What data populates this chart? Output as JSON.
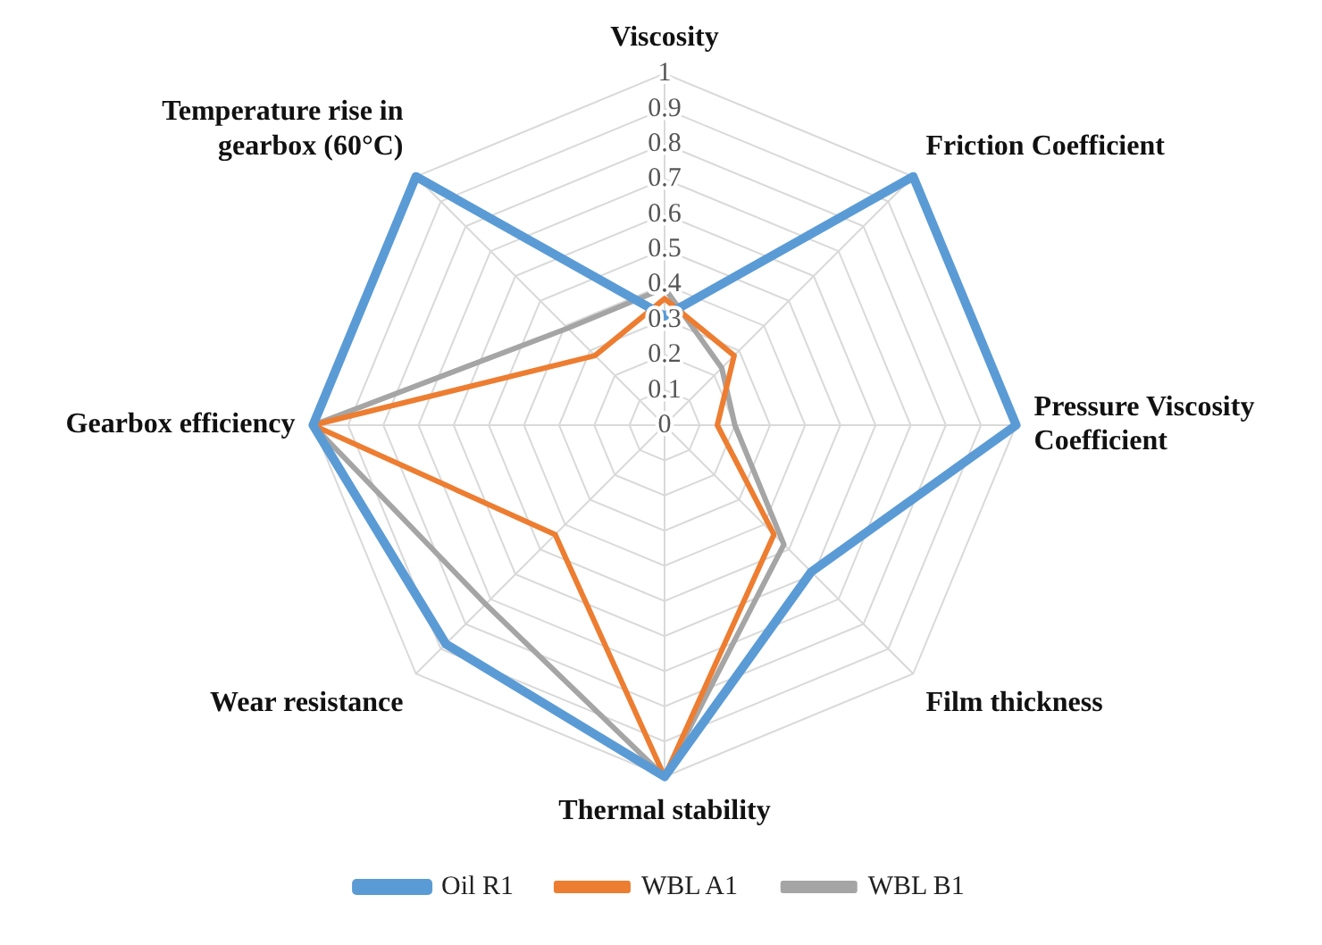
{
  "chart_data": {
    "type": "radar",
    "categories": [
      "Viscosity",
      "Friction Coefficient",
      "Pressure Viscosity Coefficient",
      "Film thickness",
      "Thermal stability",
      "Wear resistance",
      "Gearbox efficiency",
      "Temperature rise in gearbox (60°C)"
    ],
    "series": [
      {
        "name": "Oil R1",
        "color": "#5b9bd5",
        "values": [
          0.31,
          1,
          1,
          0.59,
          1,
          0.88,
          1,
          1
        ]
      },
      {
        "name": "WBL A1",
        "color": "#ed7d31",
        "values": [
          0.36,
          0.28,
          0.15,
          0.44,
          1,
          0.44,
          1,
          0.28
        ]
      },
      {
        "name": "WBL B1",
        "color": "#a5a5a5",
        "values": [
          0.39,
          0.23,
          0.2,
          0.48,
          1,
          0.72,
          1,
          0.39
        ]
      }
    ],
    "ylim": [
      0,
      1
    ],
    "yticks": [
      0,
      0.1,
      0.2,
      0.3,
      0.4,
      0.5,
      0.6,
      0.7,
      0.8,
      0.9,
      1
    ],
    "grid": true,
    "legend": "bottom",
    "marker": "none",
    "line_style": "solid"
  }
}
